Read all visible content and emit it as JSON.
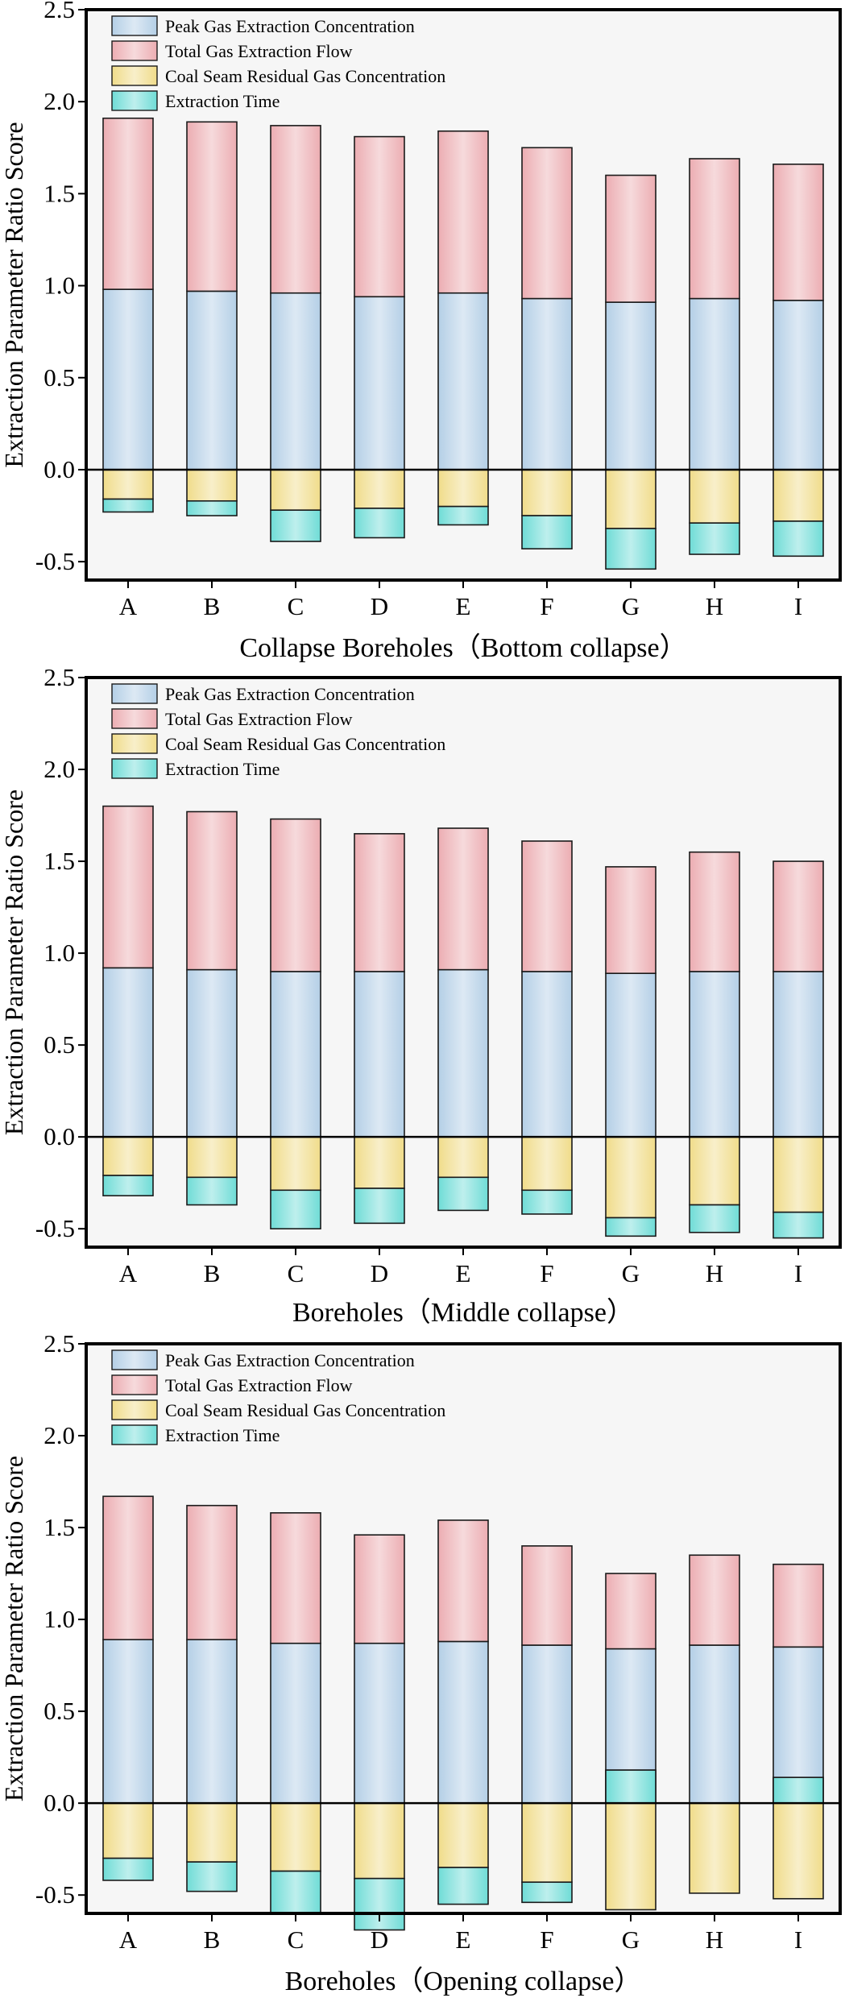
{
  "chart_data": [
    {
      "type": "bar",
      "stacked": true,
      "xlabel": "Collapse Boreholes（Bottom collapse）",
      "ylabel": "Extraction Parameter Ratio Score",
      "ylim": [
        -0.6,
        2.5
      ],
      "yticks": [
        "2.5",
        "2.0",
        "1.5",
        "1.0",
        "0.5",
        "0.0",
        "-0.5"
      ],
      "ytick_values": [
        2.5,
        2.0,
        1.5,
        1.0,
        0.5,
        0.0,
        -0.5
      ],
      "categories": [
        "A",
        "B",
        "C",
        "D",
        "E",
        "F",
        "G",
        "H",
        "I"
      ],
      "legend_position": "top-left",
      "series": [
        {
          "name": "Peak Gas Extraction Concentration",
          "color": "#b4cfe6",
          "values": [
            0.98,
            0.97,
            0.96,
            0.94,
            0.96,
            0.93,
            0.91,
            0.93,
            0.92
          ]
        },
        {
          "name": "Total Gas Extraction Flow",
          "color": "#ecadb2",
          "values": [
            0.93,
            0.92,
            0.91,
            0.87,
            0.88,
            0.82,
            0.69,
            0.76,
            0.74
          ]
        },
        {
          "name": "Coal Seam Residual Gas Concentration",
          "color": "#f0dc8a",
          "values": [
            -0.16,
            -0.17,
            -0.22,
            -0.21,
            -0.2,
            -0.25,
            -0.32,
            -0.29,
            -0.28
          ]
        },
        {
          "name": "Extraction Time",
          "color": "#6fdcd6",
          "values": [
            -0.07,
            -0.08,
            -0.17,
            -0.16,
            -0.1,
            -0.18,
            -0.22,
            -0.17,
            -0.19
          ]
        }
      ]
    },
    {
      "type": "bar",
      "stacked": true,
      "xlabel": "Boreholes（Middle collapse）",
      "ylabel": "Extraction Parameter Ratio Score",
      "ylim": [
        -0.6,
        2.5
      ],
      "yticks": [
        "2.5",
        "2.0",
        "1.5",
        "1.0",
        "0.5",
        "0.0",
        "-0.5"
      ],
      "ytick_values": [
        2.5,
        2.0,
        1.5,
        1.0,
        0.5,
        0.0,
        -0.5
      ],
      "categories": [
        "A",
        "B",
        "C",
        "D",
        "E",
        "F",
        "G",
        "H",
        "I"
      ],
      "legend_position": "top-left",
      "series": [
        {
          "name": "Peak Gas Extraction Concentration",
          "color": "#b4cfe6",
          "values": [
            0.92,
            0.91,
            0.9,
            0.9,
            0.91,
            0.9,
            0.89,
            0.9,
            0.9
          ]
        },
        {
          "name": "Total Gas Extraction Flow",
          "color": "#ecadb2",
          "values": [
            0.88,
            0.86,
            0.83,
            0.75,
            0.77,
            0.71,
            0.58,
            0.65,
            0.6
          ]
        },
        {
          "name": "Coal Seam Residual Gas Concentration",
          "color": "#f0dc8a",
          "values": [
            -0.21,
            -0.22,
            -0.29,
            -0.28,
            -0.22,
            -0.29,
            -0.44,
            -0.37,
            -0.41
          ]
        },
        {
          "name": "Extraction Time",
          "color": "#6fdcd6",
          "values": [
            -0.11,
            -0.15,
            -0.21,
            -0.19,
            -0.18,
            -0.13,
            -0.1,
            -0.15,
            -0.14
          ]
        }
      ]
    },
    {
      "type": "bar",
      "stacked": true,
      "xlabel": "Boreholes（Opening collapse）",
      "ylabel": "Extraction Parameter Ratio Score",
      "ylim": [
        -0.6,
        2.5
      ],
      "yticks": [
        "2.5",
        "2.0",
        "1.5",
        "1.0",
        "0.5",
        "0.0",
        "-0.5"
      ],
      "ytick_values": [
        2.5,
        2.0,
        1.5,
        1.0,
        0.5,
        0.0,
        -0.5
      ],
      "categories": [
        "A",
        "B",
        "C",
        "D",
        "E",
        "F",
        "G",
        "H",
        "I"
      ],
      "legend_position": "top-left",
      "series": [
        {
          "name": "Peak Gas Extraction Concentration",
          "color": "#b4cfe6",
          "values": [
            0.89,
            0.89,
            0.87,
            0.87,
            0.88,
            0.86,
            0.84,
            0.86,
            0.85
          ]
        },
        {
          "name": "Total Gas Extraction Flow",
          "color": "#ecadb2",
          "values": [
            0.78,
            0.73,
            0.71,
            0.59,
            0.66,
            0.54,
            0.41,
            0.49,
            0.45
          ]
        },
        {
          "name": "Coal Seam Residual Gas Concentration",
          "color": "#f0dc8a",
          "values": [
            -0.3,
            -0.32,
            -0.37,
            -0.41,
            -0.35,
            -0.43,
            -0.58,
            -0.49,
            -0.52
          ]
        },
        {
          "name": "Extraction Time",
          "color": "#6fdcd6",
          "values": [
            -0.12,
            -0.16,
            -0.23,
            -0.28,
            -0.2,
            -0.11,
            0.18,
            0.0,
            0.14
          ]
        }
      ]
    }
  ]
}
